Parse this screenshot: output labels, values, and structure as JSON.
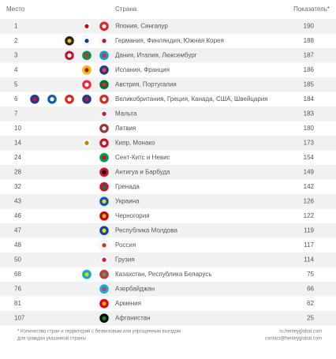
{
  "table": {
    "header": {
      "rank": "Место",
      "country": "Страна",
      "score": "Показатель*"
    },
    "rows": [
      {
        "rank": "1",
        "country": "Япония, Сингапур",
        "score": "190"
      },
      {
        "rank": "2",
        "country": "Германия, Финляндия, Южная Корея",
        "score": "188"
      },
      {
        "rank": "3",
        "country": "Дания, Италия, Люксембург",
        "score": "187"
      },
      {
        "rank": "4",
        "country": "Испания, Франция",
        "score": "186"
      },
      {
        "rank": "5",
        "country": "Австрия, Португалия",
        "score": "185"
      },
      {
        "rank": "6",
        "country": "Великобритания, Греция, Канада, США, Швейцария",
        "score": "184"
      },
      {
        "rank": "7",
        "country": "Мальта",
        "score": "183"
      },
      {
        "rank": "10",
        "country": "Латвия",
        "score": "180"
      },
      {
        "rank": "14",
        "country": "Кипр, Монако",
        "score": "173"
      },
      {
        "rank": "24",
        "country": "Сент-Китс и Невис",
        "score": "154"
      },
      {
        "rank": "28",
        "country": "Антигуа и Барбуда",
        "score": "149"
      },
      {
        "rank": "32",
        "country": "Гренада",
        "score": "142"
      },
      {
        "rank": "43",
        "country": "Украина",
        "score": "126"
      },
      {
        "rank": "46",
        "country": "Черногория",
        "score": "122"
      },
      {
        "rank": "47",
        "country": "Республика Молдова",
        "score": "119"
      },
      {
        "rank": "48",
        "country": "Россия",
        "score": "117"
      },
      {
        "rank": "50",
        "country": "Грузия",
        "score": "114"
      },
      {
        "rank": "68",
        "country": "Казахстан, Республика Беларусь",
        "score": "75"
      },
      {
        "rank": "76",
        "country": "Азербайджан",
        "score": "66"
      },
      {
        "rank": "81",
        "country": "Армения",
        "score": "62"
      },
      {
        "rank": "107",
        "country": "Афганистан",
        "score": "25"
      }
    ]
  },
  "footer": {
    "note_line1": "* Количество стран и территорий с безвизовым или упрощенным въездом",
    "note_line2": "для граждан указанной страны",
    "site": "ru.henleyglobal.com",
    "email": "contact@henleyglobal.com"
  }
}
